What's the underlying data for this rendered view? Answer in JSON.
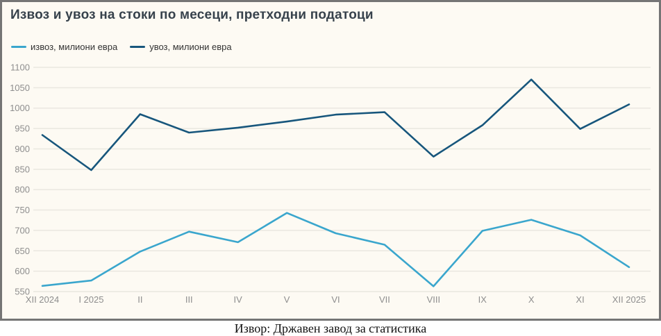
{
  "page": {
    "caption": "Извор: Државен завод за статистика"
  },
  "chart_data": {
    "type": "line",
    "title": "Извоз и увоз на стоки по месеци, претходни податоци",
    "categories": [
      "XII 2024",
      "I 2025",
      "II",
      "III",
      "IV",
      "V",
      "VI",
      "VII",
      "VIII",
      "IX",
      "X",
      "XI",
      "XII 2025"
    ],
    "series": [
      {
        "name": "извоз, милиони евра",
        "color": "#3aa6cd",
        "values": [
          564,
          577,
          648,
          697,
          671,
          743,
          693,
          665,
          563,
          699,
          726,
          688,
          610
        ]
      },
      {
        "name": "увоз, милиони евра",
        "color": "#17567c",
        "values": [
          934,
          848,
          985,
          940,
          952,
          967,
          984,
          990,
          881,
          958,
          1070,
          949,
          1009
        ]
      }
    ],
    "ylabel": "",
    "xlabel": "",
    "ylim": [
      550,
      1100
    ],
    "ytick_step": 50,
    "grid": "horizontal",
    "legend_position": "top-left"
  },
  "colors": {
    "panel_background": "#fdfaf3",
    "panel_border": "#757575",
    "gridline": "#eae7e0",
    "axis_text": "#8e8e8e",
    "title_text": "#37424c",
    "legend_text": "#333333",
    "export_line": "#3aa6cd",
    "import_line": "#17567c"
  }
}
